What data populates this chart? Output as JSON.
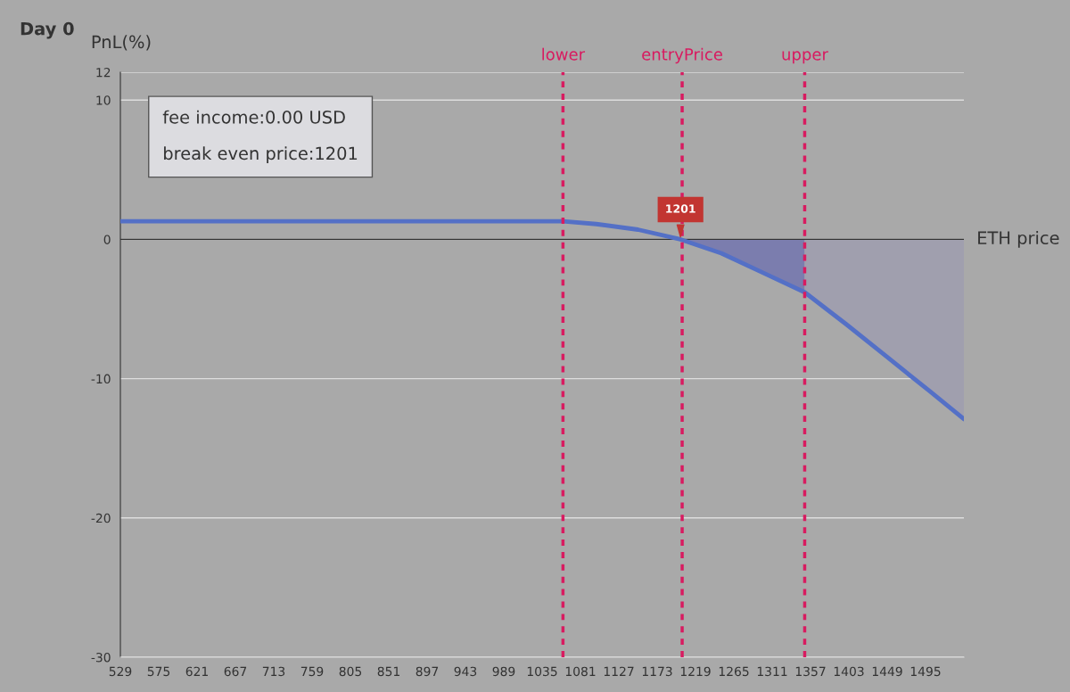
{
  "chart_data": {
    "type": "line",
    "title": "Day 0",
    "xlabel": "ETH price",
    "ylabel": "PnL(%)",
    "xlim": [
      529,
      1541
    ],
    "xticks": [
      529,
      575,
      621,
      667,
      713,
      759,
      805,
      851,
      897,
      943,
      989,
      1035,
      1081,
      1127,
      1173,
      1219,
      1265,
      1311,
      1357,
      1403,
      1449,
      1495
    ],
    "ylim": [
      -30,
      12
    ],
    "yticks": [
      -30,
      -20,
      -10,
      0,
      10,
      12
    ],
    "grid": "y",
    "legend": false,
    "marker": "none",
    "line_style": "solid",
    "series": [
      {
        "color": "#5470c6",
        "x": [
          529,
          700,
          900,
          1060,
          1100,
          1150,
          1201,
          1250,
          1300,
          1350,
          1400,
          1450,
          1500,
          1541
        ],
        "values": [
          1.3,
          1.3,
          1.3,
          1.3,
          1.1,
          0.7,
          0,
          -1.0,
          -2.4,
          -3.8,
          -6.1,
          -8.5,
          -10.9,
          -12.9
        ]
      },
      {
        "type": "area",
        "color": "#7b7dae",
        "x": [
          1201,
          1250,
          1300,
          1350
        ],
        "values": [
          0,
          -1.0,
          -2.4,
          -3.8
        ]
      },
      {
        "type": "area",
        "color": "#a09fae",
        "x": [
          1350,
          1400,
          1450,
          1500,
          1541
        ],
        "values": [
          -3.8,
          -6.1,
          -8.5,
          -10.9,
          -12.9
        ]
      }
    ],
    "ref_lines": [
      {
        "axis": "x",
        "value": 1060,
        "label": "lower",
        "color": "#d81b60",
        "line_style": "dashed"
      },
      {
        "axis": "x",
        "value": 1203,
        "label": "entryPrice",
        "color": "#d81b60",
        "line_style": "dashed"
      },
      {
        "axis": "x",
        "value": 1350,
        "label": "upper",
        "color": "#d81b60",
        "line_style": "dashed"
      }
    ],
    "annotations": [
      "fee income:0.00 USD\n\nbreak even price:1201",
      {
        "text": "1201",
        "x": 1201,
        "y": 0
      }
    ]
  }
}
